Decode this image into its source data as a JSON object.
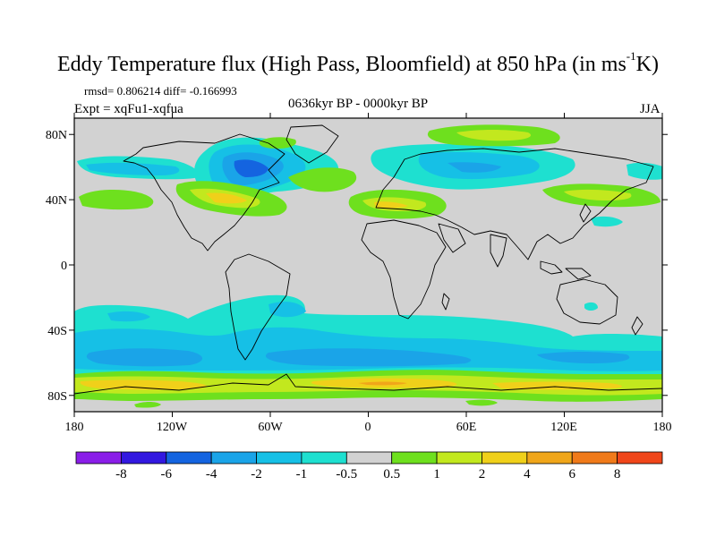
{
  "figure": {
    "title_main": "Eddy Temperature flux (High Pass, Bloomfield) at 850 hPa (in ms",
    "title_sup": "-1",
    "title_end": "K)",
    "stats": "rmsd= 0.806214 diff= -0.166993",
    "experiment": "Expt = xqFu1-xqfua",
    "period": "0636kyr BP - 0000kyr BP",
    "season": "JJA"
  },
  "axes": {
    "lat_labels": [
      "80N",
      "40N",
      "0",
      "40S",
      "80S"
    ],
    "lon_labels": [
      "180",
      "120W",
      "60W",
      "0",
      "60E",
      "120E",
      "180"
    ],
    "lat_values": [
      80,
      40,
      0,
      -40,
      -80
    ],
    "lon_values": [
      -180,
      -120,
      -60,
      0,
      60,
      120,
      180
    ],
    "lat_range": [
      -90,
      90
    ],
    "lon_range": [
      -180,
      180
    ]
  },
  "colorbar": {
    "colors": [
      "#8a1ee8",
      "#3218e0",
      "#1464e0",
      "#1aa4e8",
      "#16c0e6",
      "#1ee0d0",
      "#d2d2d2",
      "#6ee01e",
      "#c2e81e",
      "#f0d01a",
      "#f0a61a",
      "#f07a1a",
      "#f0461a"
    ],
    "labels": [
      "-8",
      "-6",
      "-4",
      "-2",
      "-1",
      "-0.5",
      "0.5",
      "1",
      "2",
      "4",
      "6",
      "8"
    ]
  },
  "colors": {
    "background_field": "#d2d2d2",
    "coastline": "#000000"
  }
}
